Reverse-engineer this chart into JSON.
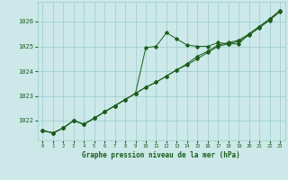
{
  "title": "Graphe pression niveau de la mer (hPa)",
  "bg_color": "#cce8e8",
  "grid_color": "#99cccc",
  "line_color": "#1a5c1a",
  "xlim": [
    -0.5,
    23.5
  ],
  "ylim": [
    1021.2,
    1026.8
  ],
  "yticks": [
    1022,
    1023,
    1024,
    1025,
    1026
  ],
  "xticks": [
    0,
    1,
    2,
    3,
    4,
    5,
    6,
    7,
    8,
    9,
    10,
    11,
    12,
    13,
    14,
    15,
    16,
    17,
    18,
    19,
    20,
    21,
    22,
    23
  ],
  "series": [
    [
      1021.6,
      1021.5,
      1021.7,
      1022.0,
      1021.85,
      1022.1,
      1022.35,
      1022.6,
      1022.85,
      1023.1,
      1024.95,
      1025.0,
      1025.55,
      1025.3,
      1025.05,
      1025.0,
      1025.0,
      1025.15,
      1025.1,
      1025.1,
      1025.5,
      1025.8,
      1026.1,
      1026.45
    ],
    [
      1021.6,
      1021.5,
      1021.7,
      1022.0,
      1021.85,
      1022.1,
      1022.35,
      1022.6,
      1022.85,
      1023.1,
      1023.35,
      1023.55,
      1023.8,
      1024.05,
      1024.3,
      1024.6,
      1024.8,
      1025.05,
      1025.15,
      1025.25,
      1025.5,
      1025.8,
      1026.1,
      1026.45
    ],
    [
      1021.6,
      1021.5,
      1021.7,
      1022.0,
      1021.85,
      1022.1,
      1022.35,
      1022.6,
      1022.85,
      1023.1,
      1023.35,
      1023.55,
      1023.8,
      1024.05,
      1024.25,
      1024.5,
      1024.75,
      1025.0,
      1025.1,
      1025.2,
      1025.45,
      1025.75,
      1026.05,
      1026.4
    ]
  ],
  "figsize": [
    3.2,
    2.0
  ],
  "dpi": 100
}
